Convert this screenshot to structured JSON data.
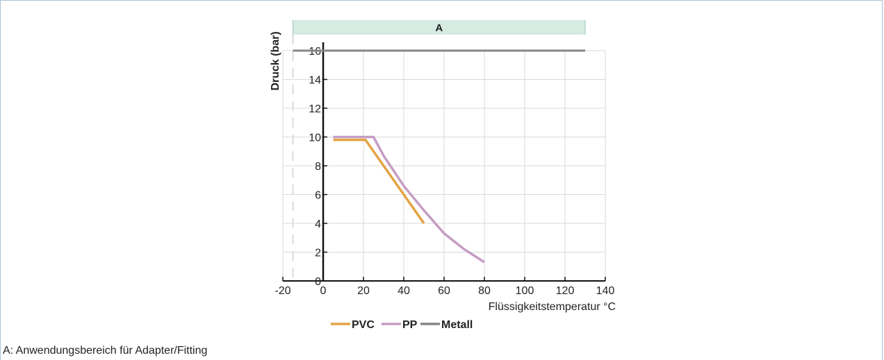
{
  "chart_data": {
    "type": "line",
    "xlabel": "Flüssigkeitstemperatur °C",
    "ylabel": "Druck (bar)",
    "xlim": [
      -20,
      140
    ],
    "ylim": [
      0,
      16
    ],
    "x_ticks": [
      -20,
      0,
      20,
      40,
      60,
      80,
      100,
      120,
      140
    ],
    "y_ticks": [
      0,
      2,
      4,
      6,
      8,
      10,
      12,
      14,
      16
    ],
    "grid": true,
    "legend_position": "bottom",
    "band": {
      "label": "A",
      "x_range": [
        -15,
        130
      ],
      "color": "#d6ebe2"
    },
    "series": [
      {
        "name": "PVC",
        "color": "#e3a444",
        "x": [
          5,
          21,
          30,
          40,
          50
        ],
        "y": [
          9.8,
          9.8,
          8.0,
          6.0,
          4.0
        ]
      },
      {
        "name": "PP",
        "color": "#c59dc3",
        "x": [
          5,
          25,
          30,
          40,
          50,
          60,
          70,
          80
        ],
        "y": [
          10.0,
          10.0,
          8.7,
          6.6,
          4.9,
          3.3,
          2.2,
          1.3
        ]
      },
      {
        "name": "Metall",
        "color": "#868686",
        "x": [
          -15,
          130
        ],
        "y": [
          16,
          16
        ]
      }
    ]
  },
  "footnote": "A: Anwendungsbereich für Adapter/Fitting"
}
